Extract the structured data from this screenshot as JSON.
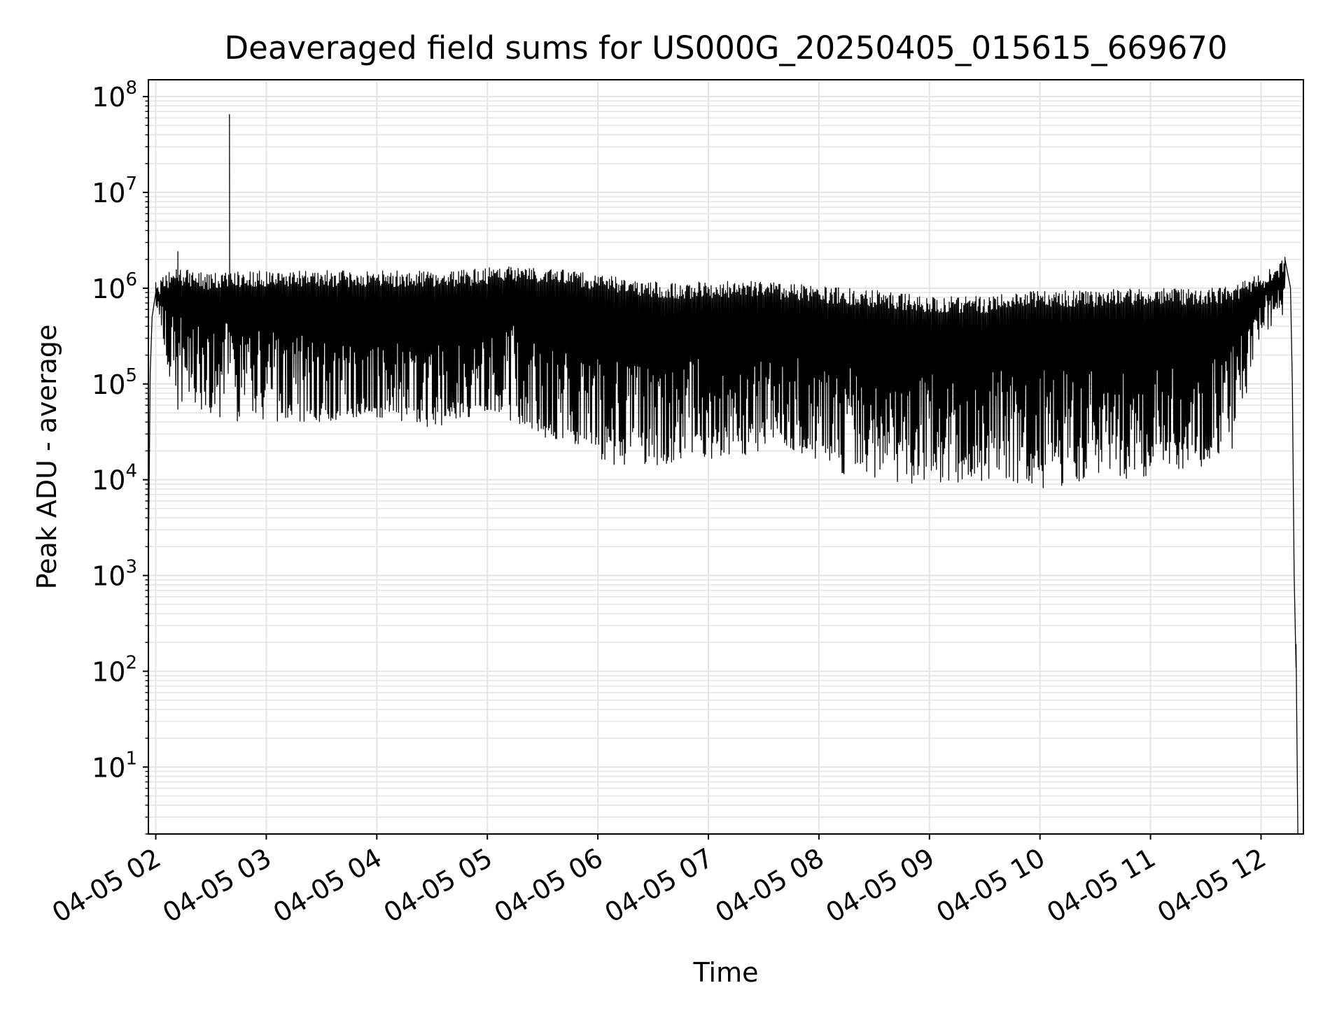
{
  "chart_data": {
    "type": "line",
    "title": "Deaveraged field sums for US000G_20250405_015615_669670",
    "xlabel": "Time",
    "ylabel": "Peak ADU - average",
    "x_scale": "time",
    "y_scale": "log",
    "xlim": [
      "2025-04-05 01:56",
      "2025-04-05 12:23"
    ],
    "ylim": [
      2,
      150000000
    ],
    "x_ticks": [
      {
        "value": "2025-04-05 02:00",
        "label": "04-05 02"
      },
      {
        "value": "2025-04-05 03:00",
        "label": "04-05 03"
      },
      {
        "value": "2025-04-05 04:00",
        "label": "04-05 04"
      },
      {
        "value": "2025-04-05 05:00",
        "label": "04-05 05"
      },
      {
        "value": "2025-04-05 06:00",
        "label": "04-05 06"
      },
      {
        "value": "2025-04-05 07:00",
        "label": "04-05 07"
      },
      {
        "value": "2025-04-05 08:00",
        "label": "04-05 08"
      },
      {
        "value": "2025-04-05 09:00",
        "label": "04-05 09"
      },
      {
        "value": "2025-04-05 10:00",
        "label": "04-05 10"
      },
      {
        "value": "2025-04-05 11:00",
        "label": "04-05 11"
      },
      {
        "value": "2025-04-05 12:00",
        "label": "04-05 12"
      }
    ],
    "y_ticks": [
      {
        "exp": 1,
        "base": "10",
        "sup": "1"
      },
      {
        "exp": 2,
        "base": "10",
        "sup": "2"
      },
      {
        "exp": 3,
        "base": "10",
        "sup": "3"
      },
      {
        "exp": 4,
        "base": "10",
        "sup": "4"
      },
      {
        "exp": 5,
        "base": "10",
        "sup": "5"
      },
      {
        "exp": 6,
        "base": "10",
        "sup": "6"
      },
      {
        "exp": 7,
        "base": "10",
        "sup": "7"
      },
      {
        "exp": 8,
        "base": "10",
        "sup": "8"
      }
    ],
    "grid": true,
    "grid_minor": true,
    "line_color": "#000000",
    "grid_color": "#e5e5e5",
    "series": [
      {
        "envelope": {
          "x": [
            "2025-04-05 01:56",
            "2025-04-05 02:00",
            "2025-04-05 02:10",
            "2025-04-05 02:20",
            "2025-04-05 02:30",
            "2025-04-05 02:40",
            "2025-04-05 02:50",
            "2025-04-05 03:00",
            "2025-04-05 03:15",
            "2025-04-05 03:30",
            "2025-04-05 03:45",
            "2025-04-05 04:00",
            "2025-04-05 04:15",
            "2025-04-05 04:30",
            "2025-04-05 04:45",
            "2025-04-05 05:00",
            "2025-04-05 05:15",
            "2025-04-05 05:30",
            "2025-04-05 05:45",
            "2025-04-05 06:00",
            "2025-04-05 06:15",
            "2025-04-05 06:30",
            "2025-04-05 06:45",
            "2025-04-05 07:00",
            "2025-04-05 07:15",
            "2025-04-05 07:30",
            "2025-04-05 07:45",
            "2025-04-05 08:00",
            "2025-04-05 08:15",
            "2025-04-05 08:30",
            "2025-04-05 08:45",
            "2025-04-05 09:00",
            "2025-04-05 09:15",
            "2025-04-05 09:30",
            "2025-04-05 09:45",
            "2025-04-05 10:00",
            "2025-04-05 10:15",
            "2025-04-05 10:30",
            "2025-04-05 10:45",
            "2025-04-05 11:00",
            "2025-04-05 11:15",
            "2025-04-05 11:30",
            "2025-04-05 11:45",
            "2025-04-05 12:00",
            "2025-04-05 12:10",
            "2025-04-05 12:20"
          ],
          "upper": [
            30000,
            1000000,
            1400000,
            1300000,
            1200000,
            1300000,
            1300000,
            1300000,
            1300000,
            1300000,
            1300000,
            1300000,
            1300000,
            1300000,
            1300000,
            1400000,
            1500000,
            1400000,
            1300000,
            1200000,
            1100000,
            1000000,
            950000,
            1000000,
            1000000,
            1000000,
            950000,
            900000,
            850000,
            800000,
            750000,
            700000,
            700000,
            700000,
            750000,
            800000,
            800000,
            800000,
            850000,
            850000,
            850000,
            850000,
            900000,
            1200000,
            1600000,
            2000000
          ],
          "baseline": [
            5000,
            700000,
            300000,
            120000,
            150000,
            150000,
            120000,
            100000,
            100000,
            55000,
            60000,
            70000,
            60000,
            50000,
            70000,
            60000,
            120000,
            40000,
            35000,
            30000,
            30000,
            30000,
            35000,
            40000,
            35000,
            35000,
            45000,
            35000,
            30000,
            30000,
            28000,
            25000,
            25000,
            28000,
            25000,
            25000,
            25000,
            25000,
            25000,
            25000,
            25000,
            30000,
            80000,
            500000,
            800000,
            1000000
          ],
          "lower": [
            5000,
            700000,
            50000,
            40000,
            50000,
            40000,
            40000,
            40000,
            40000,
            40000,
            45000,
            45000,
            40000,
            35000,
            40000,
            50000,
            40000,
            28000,
            25000,
            15000,
            14000,
            13000,
            15000,
            15000,
            15000,
            18000,
            20000,
            15000,
            11000,
            10000,
            9000,
            9000,
            9000,
            9000,
            9000,
            8000,
            8000,
            9000,
            10000,
            11000,
            12000,
            14000,
            20000,
            300000,
            500000,
            600000
          ]
        },
        "spikes": [
          {
            "x": "2025-04-05 02:40",
            "y": 65000000
          },
          {
            "x": "2025-04-05 02:12",
            "y": 2400000
          },
          {
            "x": "2025-04-05 12:13",
            "y": 2100000
          }
        ],
        "ramp_up": [
          {
            "x": "2025-04-05 01:56",
            "y": 5
          },
          {
            "x": "2025-04-05 01:56",
            "y": 30000
          },
          {
            "x": "2025-04-05 01:56",
            "y": 1300
          },
          {
            "x": "2025-04-05 01:57",
            "y": 130000
          },
          {
            "x": "2025-04-05 01:58",
            "y": 500000
          },
          {
            "x": "2025-04-05 02:00",
            "y": 900000
          }
        ],
        "tail": [
          {
            "x": "2025-04-05 12:13",
            "y": 2000000
          },
          {
            "x": "2025-04-05 12:16",
            "y": 1000000
          },
          {
            "x": "2025-04-05 12:17",
            "y": 100000
          },
          {
            "x": "2025-04-05 12:18",
            "y": 1000
          },
          {
            "x": "2025-04-05 12:19",
            "y": 110
          },
          {
            "x": "2025-04-05 12:19",
            "y": 190
          },
          {
            "x": "2025-04-05 12:20",
            "y": 2
          }
        ]
      }
    ]
  }
}
